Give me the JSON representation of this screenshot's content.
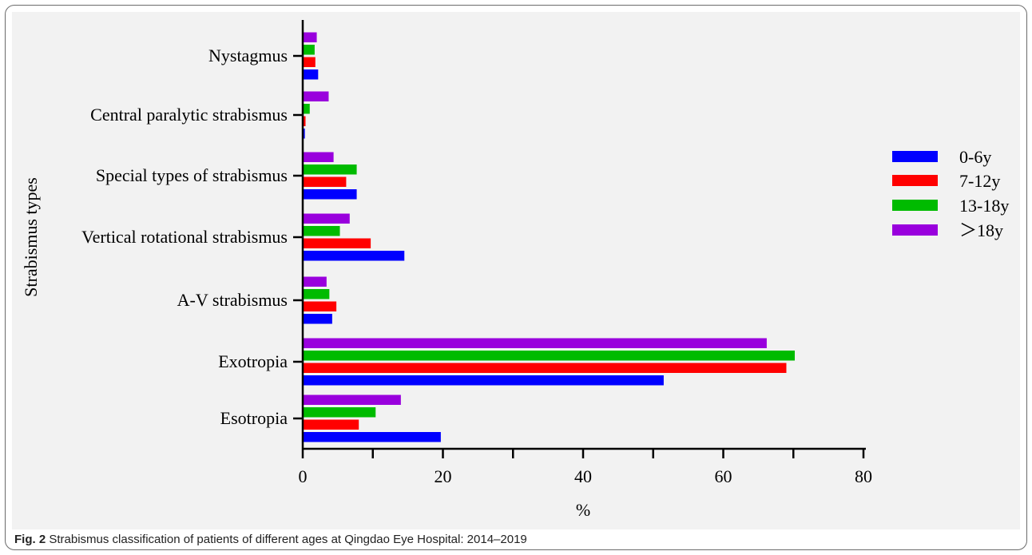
{
  "chart_data": {
    "type": "bar",
    "orientation": "horizontal",
    "categories": [
      "Esotropia",
      "Exotropia",
      "A-V strabismus",
      "Vertical rotational strabismus",
      "Special types of strabismus",
      "Central paralytic strabismus",
      "Nystagmus"
    ],
    "series": [
      {
        "name": "0-6y",
        "color": "#0000ff",
        "values": [
          19.7,
          51.5,
          4.2,
          14.5,
          7.7,
          0.3,
          2.2
        ]
      },
      {
        "name": "7-12y",
        "color": "#ff0000",
        "values": [
          8.0,
          69.0,
          4.8,
          9.7,
          6.2,
          0.4,
          1.8
        ]
      },
      {
        "name": "13-18y",
        "color": "#00bb00",
        "values": [
          10.4,
          70.2,
          3.8,
          5.3,
          7.7,
          1.0,
          1.7
        ]
      },
      {
        "name": "＞18y",
        "color": "#9900dd",
        "values": [
          14.0,
          66.2,
          3.4,
          6.7,
          4.4,
          3.7,
          2.0
        ]
      }
    ],
    "xlabel": "%",
    "ylabel": "Strabismus types",
    "xlim": [
      0,
      80
    ],
    "xticks": [
      "0",
      "20",
      "40",
      "60",
      "80"
    ],
    "grid": false,
    "legend_position": "right"
  },
  "caption": {
    "label": "Fig. 2",
    "text": " Strabismus classification of patients of different ages at Qingdao Eye Hospital: 2014–2019"
  }
}
